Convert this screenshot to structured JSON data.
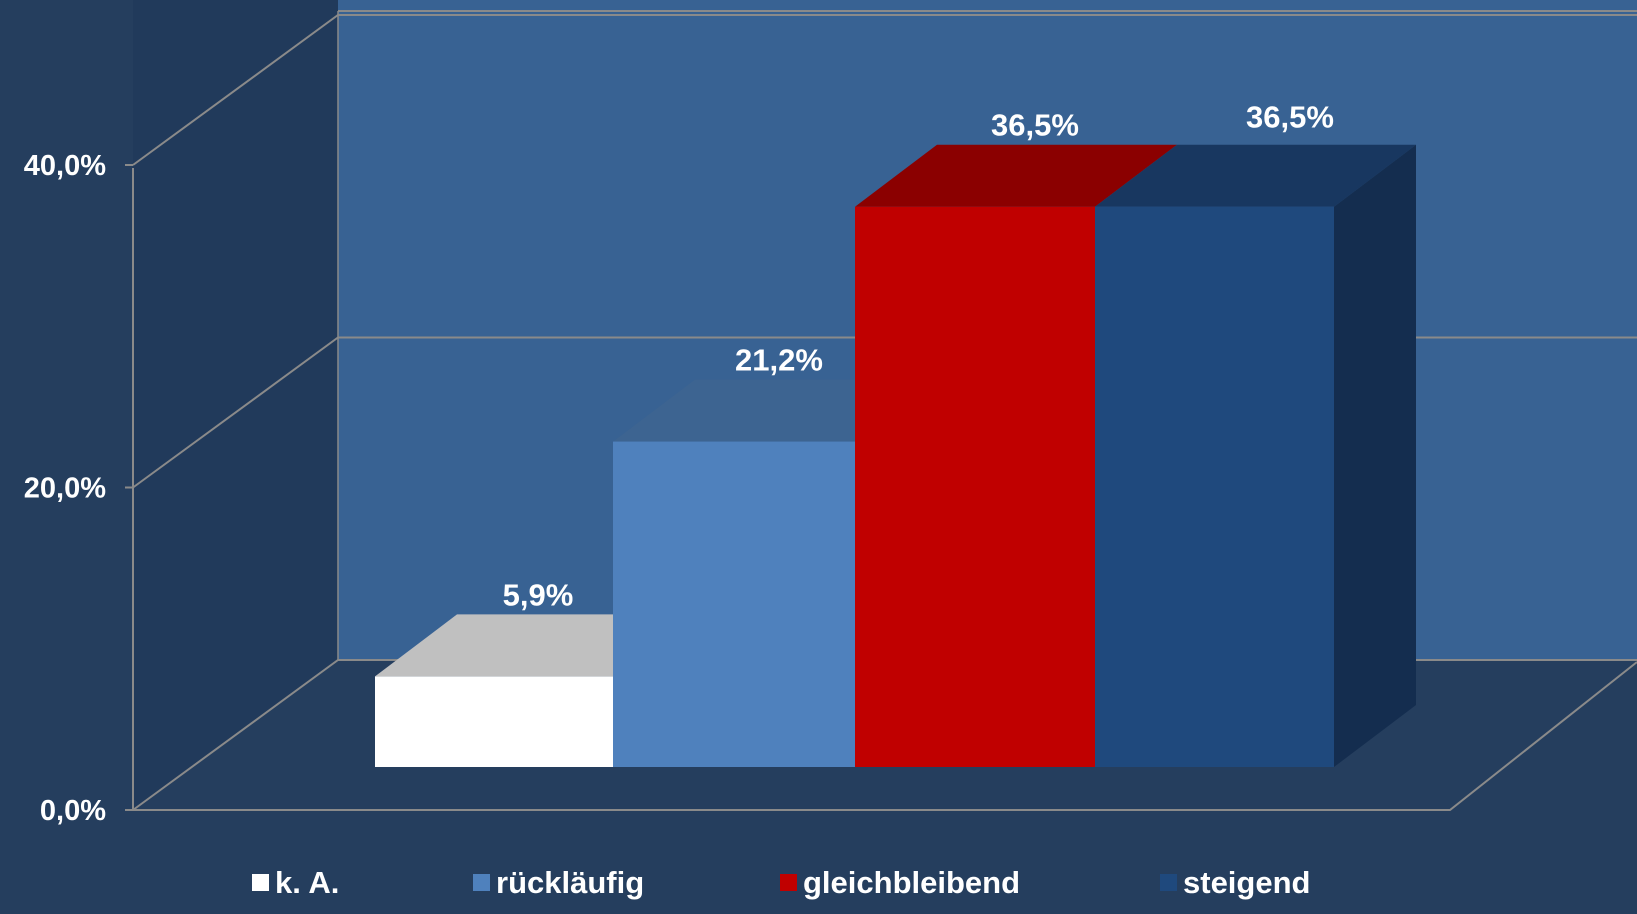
{
  "chart_data": {
    "type": "bar",
    "categories": [
      "k. A.",
      "rückläufig",
      "gleichbleibend",
      "steigend"
    ],
    "values": [
      5.9,
      21.2,
      36.5,
      36.5
    ],
    "value_labels": [
      "5,9%",
      "21,2%",
      "36,5%",
      "36,5%"
    ],
    "ylim": [
      0,
      40
    ],
    "yticks": [
      0,
      20,
      40
    ],
    "ytick_labels": [
      "0,0%",
      "20,0%",
      "40,0%"
    ],
    "legend_position": "bottom",
    "grid": true,
    "three_d": true,
    "colors": {
      "background": "#253e5e",
      "back_wall": "#386293",
      "side_wall": "#213a5b",
      "floor": "#253e5e",
      "gridline": "#8a8a8a",
      "series": [
        "#ffffff",
        "#4f81bd",
        "#c00000",
        "#1f497d"
      ],
      "series_top": [
        "#c0c0c0",
        "#3d6491",
        "#8b0000",
        "#183760"
      ],
      "series_side": [
        "#d9d9d9",
        "#3d6491",
        "#8b0000",
        "#142d4f"
      ]
    }
  }
}
